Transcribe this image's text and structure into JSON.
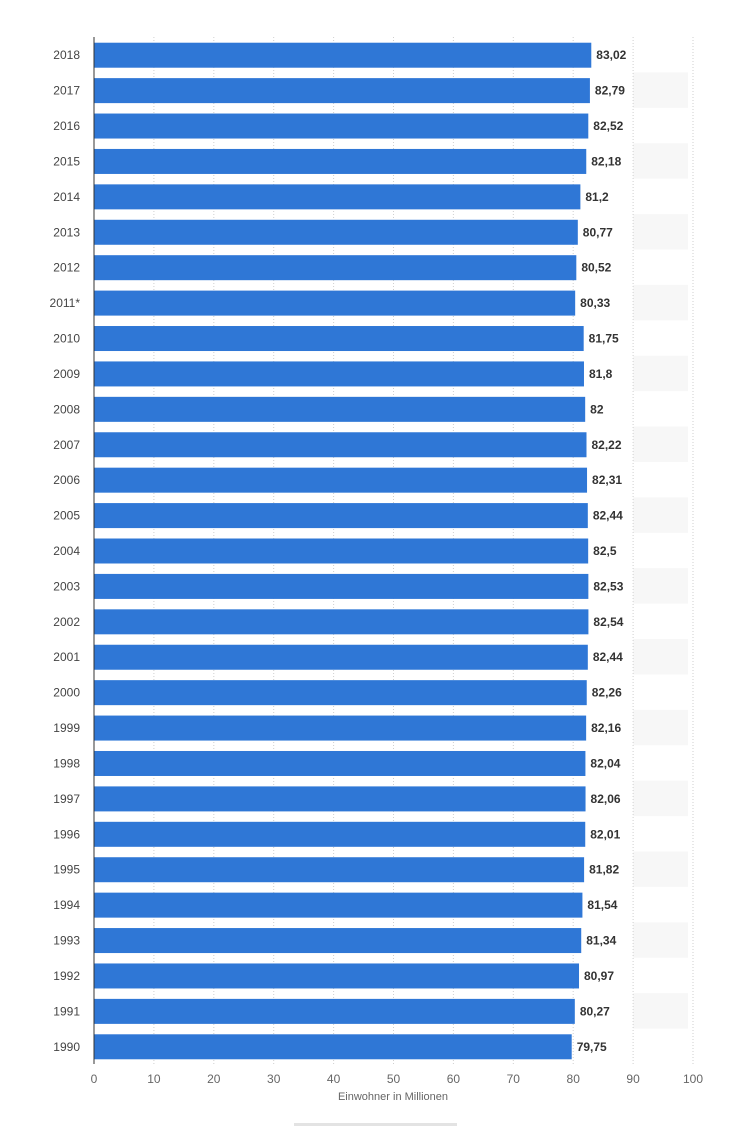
{
  "chart_data": {
    "type": "bar",
    "orientation": "horizontal",
    "categories": [
      "2018",
      "2017",
      "2016",
      "2015",
      "2014",
      "2013",
      "2012",
      "2011*",
      "2010",
      "2009",
      "2008",
      "2007",
      "2006",
      "2005",
      "2004",
      "2003",
      "2002",
      "2001",
      "2000",
      "1999",
      "1998",
      "1997",
      "1996",
      "1995",
      "1994",
      "1993",
      "1992",
      "1991",
      "1990"
    ],
    "values": [
      83.02,
      82.79,
      82.52,
      82.18,
      81.2,
      80.77,
      80.52,
      80.33,
      81.75,
      81.8,
      82,
      82.22,
      82.31,
      82.44,
      82.5,
      82.53,
      82.54,
      82.44,
      82.26,
      82.16,
      82.04,
      82.06,
      82.01,
      81.82,
      81.54,
      81.34,
      80.97,
      80.27,
      79.75
    ],
    "value_labels": [
      "83,02",
      "82,79",
      "82,52",
      "82,18",
      "81,2",
      "80,77",
      "80,52",
      "80,33",
      "81,75",
      "81,8",
      "82",
      "82,22",
      "82,31",
      "82,44",
      "82,5",
      "82,53",
      "82,54",
      "82,44",
      "82,26",
      "82,16",
      "82,04",
      "82,06",
      "82,01",
      "81,82",
      "81,54",
      "81,34",
      "80,97",
      "80,27",
      "79,75"
    ],
    "xlabel": "Einwohner in Millionen",
    "ylabel": "",
    "xlim": [
      0,
      100
    ],
    "x_ticks": [
      0,
      10,
      20,
      30,
      40,
      50,
      60,
      70,
      80,
      90,
      100
    ],
    "x_tick_labels": [
      "0",
      "10",
      "20",
      "30",
      "40",
      "50",
      "60",
      "70",
      "80",
      "90",
      "100"
    ],
    "grid": true,
    "bar_color": "#2f77d6",
    "alt_row_color": "#f7f7f7"
  }
}
